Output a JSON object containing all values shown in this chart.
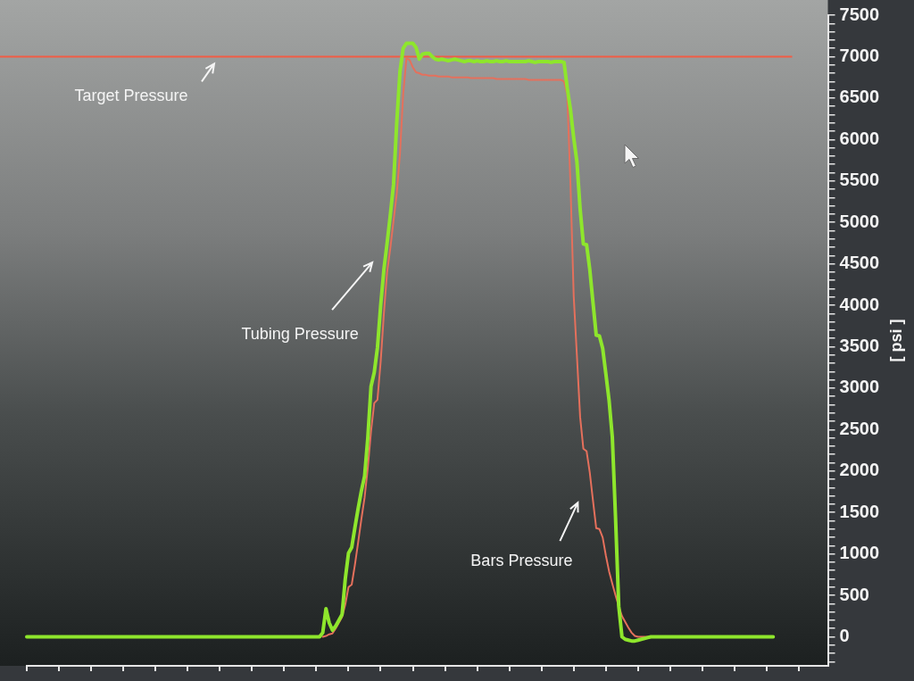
{
  "chart_data": {
    "type": "line",
    "ylabel": "[ psi ]",
    "tick_labels": "y",
    "categories": [
      null,
      null,
      null,
      null,
      null,
      null,
      null,
      null,
      null,
      null,
      null,
      null,
      null,
      null,
      null,
      null,
      null,
      null,
      null,
      null,
      null,
      null,
      null,
      null,
      null,
      null,
      null,
      null,
      null,
      null,
      null,
      null,
      null,
      null,
      null,
      null,
      null,
      null,
      null,
      null,
      null,
      null,
      null,
      null,
      null,
      null,
      null,
      null,
      null,
      null,
      null,
      null,
      null,
      null,
      null,
      null,
      null,
      null,
      null,
      null,
      null,
      null,
      null,
      null,
      null,
      null,
      null,
      null,
      null,
      null,
      null,
      null,
      null,
      null,
      null,
      null,
      null,
      null,
      null,
      null,
      null,
      null,
      null,
      null,
      null,
      null,
      null,
      null,
      null,
      null,
      null,
      null,
      null,
      null,
      null,
      null,
      null,
      null,
      null,
      null,
      null,
      null,
      null,
      null,
      null,
      null,
      null,
      null,
      null,
      null,
      null,
      null,
      null,
      null,
      null,
      null,
      null,
      null,
      null,
      null,
      null,
      null,
      null,
      null,
      null,
      null,
      null,
      null,
      null,
      null,
      null,
      null,
      null,
      null,
      null,
      null,
      null,
      null,
      null,
      null,
      null,
      null,
      null,
      null,
      null,
      null,
      null,
      null,
      null,
      null,
      null,
      null,
      null,
      null,
      null,
      null,
      null,
      null,
      null,
      null,
      null,
      null,
      null,
      null,
      null,
      null,
      null,
      null,
      null,
      null,
      null,
      null,
      null,
      null,
      null,
      null,
      null,
      null,
      null,
      null,
      null,
      null,
      null,
      null,
      null,
      null,
      null,
      null,
      null,
      null,
      null,
      null,
      null,
      null,
      null,
      null,
      null,
      null,
      null,
      null,
      null,
      null,
      null,
      null,
      null,
      null,
      null,
      null,
      null,
      null,
      null,
      null,
      null,
      null,
      null,
      null,
      null,
      null,
      null,
      null,
      null,
      null,
      null,
      null,
      null,
      null,
      null,
      null,
      null,
      null,
      null,
      null,
      null,
      null,
      null,
      null,
      null,
      null,
      null,
      null,
      null,
      null,
      null,
      null,
      null,
      null,
      null,
      null,
      null,
      null
    ],
    "series": [
      {
        "name": "Tubing Pressure",
        "color": "#8ee62c",
        "values": [
          0,
          0,
          0,
          0,
          0,
          0,
          0,
          0,
          0,
          0,
          0,
          0,
          0,
          0,
          0,
          0,
          0,
          0,
          0,
          0,
          0,
          0,
          0,
          0,
          0,
          0,
          0,
          0,
          0,
          0,
          0,
          0,
          0,
          0,
          0,
          0,
          0,
          0,
          0,
          0,
          0,
          0,
          0,
          0,
          0,
          0,
          0,
          0,
          0,
          0,
          0,
          0,
          0,
          0,
          0,
          0,
          0,
          0,
          0,
          0,
          0,
          0,
          0,
          0,
          0,
          0,
          0,
          0,
          0,
          0,
          0,
          0,
          0,
          0,
          0,
          0,
          0,
          0,
          0,
          0,
          0,
          0,
          0,
          0,
          0,
          0,
          0,
          0,
          0,
          0,
          0,
          0,
          50,
          340,
          170,
          80,
          130,
          200,
          270,
          700,
          1010,
          1080,
          1320,
          1550,
          1760,
          1940,
          2400,
          3020,
          3190,
          3490,
          4000,
          4430,
          4750,
          5090,
          5460,
          6210,
          6820,
          7100,
          7160,
          7160,
          7160,
          7110,
          6970,
          7030,
          7040,
          7040,
          7000,
          6970,
          6960,
          6970,
          6960,
          6950,
          6960,
          6970,
          6960,
          6950,
          6940,
          6950,
          6950,
          6940,
          6950,
          6940,
          6940,
          6950,
          6940,
          6940,
          6950,
          6940,
          6940,
          6950,
          6940,
          6940,
          6940,
          6940,
          6940,
          6940,
          6950,
          6940,
          6930,
          6940,
          6940,
          6940,
          6940,
          6930,
          6940,
          6940,
          6940,
          6930,
          6620,
          6360,
          6020,
          5730,
          5160,
          4740,
          4730,
          4430,
          4030,
          3640,
          3630,
          3480,
          3170,
          2850,
          2410,
          1440,
          370,
          0,
          -30,
          -40,
          -50,
          -50,
          -40,
          -30,
          -20,
          -10,
          0,
          0,
          0,
          0,
          0,
          0,
          0,
          0,
          0,
          0,
          0,
          0,
          0,
          0,
          0,
          0,
          0,
          0,
          0,
          0,
          0,
          0,
          0,
          0,
          0,
          0,
          0,
          0,
          0,
          0,
          0,
          0,
          0,
          0,
          0,
          0,
          0,
          0,
          0,
          null,
          null,
          null,
          null,
          null,
          null,
          null,
          null,
          null,
          null,
          null,
          null,
          null,
          null,
          null,
          null,
          null
        ]
      },
      {
        "name": "Bars Pressure",
        "color": "#e5705c",
        "values": [
          null,
          null,
          null,
          null,
          null,
          null,
          null,
          null,
          null,
          null,
          null,
          null,
          null,
          null,
          null,
          null,
          null,
          null,
          null,
          null,
          null,
          null,
          null,
          null,
          null,
          null,
          null,
          null,
          null,
          null,
          null,
          null,
          null,
          null,
          null,
          null,
          null,
          null,
          null,
          null,
          null,
          null,
          null,
          null,
          null,
          null,
          null,
          null,
          null,
          null,
          null,
          null,
          null,
          null,
          null,
          null,
          null,
          null,
          null,
          null,
          null,
          null,
          null,
          null,
          null,
          null,
          null,
          null,
          null,
          null,
          null,
          null,
          null,
          null,
          null,
          null,
          null,
          null,
          null,
          null,
          null,
          null,
          null,
          null,
          null,
          null,
          null,
          null,
          null,
          null,
          null,
          null,
          0,
          10,
          30,
          40,
          100,
          170,
          240,
          390,
          600,
          630,
          870,
          1140,
          1420,
          1680,
          2040,
          2480,
          2820,
          2860,
          3320,
          3900,
          4400,
          4690,
          5020,
          5350,
          5830,
          6550,
          6980,
          6960,
          6870,
          6810,
          6800,
          6780,
          6780,
          6770,
          6770,
          6770,
          6760,
          6760,
          6760,
          6760,
          6750,
          6750,
          6750,
          6750,
          6750,
          6750,
          6740,
          6740,
          6740,
          6740,
          6740,
          6740,
          6740,
          6740,
          6730,
          6730,
          6730,
          6730,
          6730,
          6730,
          6730,
          6730,
          6730,
          6730,
          6720,
          6720,
          6720,
          6720,
          6720,
          6720,
          6720,
          6720,
          6720,
          6720,
          6720,
          6700,
          6540,
          5450,
          4110,
          3390,
          2650,
          2270,
          2240,
          1980,
          1640,
          1310,
          1300,
          1200,
          980,
          790,
          640,
          500,
          370,
          250,
          180,
          110,
          50,
          10,
          0,
          0,
          0,
          0,
          0,
          null,
          null,
          null,
          null,
          null,
          null,
          null,
          null,
          null,
          null,
          null,
          null,
          null,
          null,
          null,
          null,
          null,
          null,
          null,
          null,
          null,
          null,
          null,
          null,
          null,
          null,
          null,
          null,
          null,
          null,
          null,
          null,
          null,
          null,
          null,
          null,
          null,
          null,
          null,
          null,
          null,
          null,
          null,
          null,
          null,
          null,
          null,
          null,
          null,
          null,
          null,
          null,
          null,
          null,
          null
        ]
      }
    ],
    "ylim": [
      -350,
      7500
    ],
    "yticks": [
      {
        "value": -300,
        "label": null
      },
      {
        "value": -200,
        "label": null
      },
      {
        "value": -100,
        "label": null
      },
      0,
      {
        "value": 100,
        "label": null
      },
      {
        "value": 200,
        "label": null
      },
      {
        "value": 300,
        "label": null
      },
      {
        "value": 400,
        "label": null
      },
      500,
      {
        "value": 600,
        "label": null
      },
      {
        "value": 700,
        "label": null
      },
      {
        "value": 800,
        "label": null
      },
      {
        "value": 900,
        "label": null
      },
      1000,
      {
        "value": 1100,
        "label": null
      },
      {
        "value": 1200,
        "label": null
      },
      {
        "value": 1300,
        "label": null
      },
      {
        "value": 1400,
        "label": null
      },
      1500,
      {
        "value": 1600,
        "label": null
      },
      {
        "value": 1700,
        "label": null
      },
      {
        "value": 1800,
        "label": null
      },
      {
        "value": 1900,
        "label": null
      },
      2000,
      {
        "value": 2100,
        "label": null
      },
      {
        "value": 2200,
        "label": null
      },
      {
        "value": 2300,
        "label": null
      },
      {
        "value": 2400,
        "label": null
      },
      2500,
      {
        "value": 2600,
        "label": null
      },
      {
        "value": 2700,
        "label": null
      },
      {
        "value": 2800,
        "label": null
      },
      {
        "value": 2900,
        "label": null
      },
      3000,
      {
        "value": 3100,
        "label": null
      },
      {
        "value": 3200,
        "label": null
      },
      {
        "value": 3300,
        "label": null
      },
      {
        "value": 3400,
        "label": null
      },
      3500,
      {
        "value": 3600,
        "label": null
      },
      {
        "value": 3700,
        "label": null
      },
      {
        "value": 3800,
        "label": null
      },
      {
        "value": 3900,
        "label": null
      },
      4000,
      {
        "value": 4100,
        "label": null
      },
      {
        "value": 4200,
        "label": null
      },
      {
        "value": 4300,
        "label": null
      },
      {
        "value": 4400,
        "label": null
      },
      4500,
      {
        "value": 4600,
        "label": null
      },
      {
        "value": 4700,
        "label": null
      },
      {
        "value": 4800,
        "label": null
      },
      {
        "value": 4900,
        "label": null
      },
      5000,
      {
        "value": 5100,
        "label": null
      },
      {
        "value": 5200,
        "label": null
      },
      {
        "value": 5300,
        "label": null
      },
      {
        "value": 5400,
        "label": null
      },
      5500,
      {
        "value": 5600,
        "label": null
      },
      {
        "value": 5700,
        "label": null
      },
      {
        "value": 5800,
        "label": null
      },
      {
        "value": 5900,
        "label": null
      },
      6000,
      {
        "value": 6100,
        "label": null
      },
      {
        "value": 6200,
        "label": null
      },
      {
        "value": 6300,
        "label": null
      },
      {
        "value": 6400,
        "label": null
      },
      6500,
      {
        "value": 6600,
        "label": null
      },
      {
        "value": 6700,
        "label": null
      },
      {
        "value": 6800,
        "label": null
      },
      {
        "value": 6900,
        "label": null
      },
      7000,
      {
        "value": 7100,
        "label": null
      },
      {
        "value": 7200,
        "label": null
      },
      {
        "value": 7300,
        "label": null
      },
      {
        "value": 7400,
        "label": null
      },
      7500
    ],
    "ref_lines": [
      {
        "axis": "y",
        "value": 7000,
        "label": "Target Pressure",
        "color": "#f25c45"
      }
    ]
  }
}
